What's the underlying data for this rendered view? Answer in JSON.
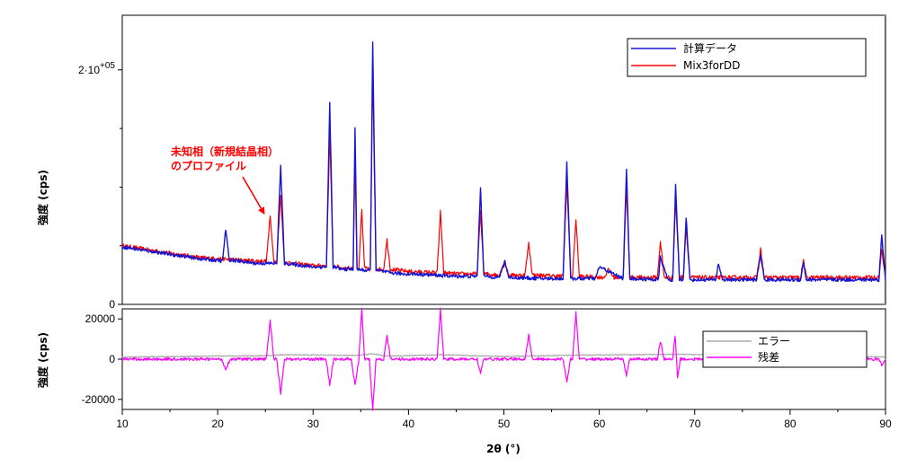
{
  "chart_data": [
    {
      "type": "line",
      "panel": "top",
      "ylabel": "強度 (cps)",
      "ylim": [
        0,
        245000
      ],
      "y_ticks": [
        {
          "value": 0,
          "label": "0"
        },
        {
          "value": 200000,
          "label": "2·10",
          "exp": "+05"
        }
      ],
      "legend": {
        "position": "top-right"
      },
      "series": [
        {
          "name": "計算データ",
          "color": "#1414d2",
          "x": [
            10,
            14,
            18,
            20.5,
            20.85,
            21.2,
            24,
            26.2,
            26.6,
            27.0,
            30,
            31.4,
            31.75,
            32.1,
            33,
            34.2,
            34.4,
            34.6,
            35.5,
            36.0,
            36.25,
            36.6,
            38,
            39.5,
            40.5,
            42.5,
            45,
            47.2,
            47.55,
            47.9,
            49.5,
            50.1,
            50.5,
            54,
            56.2,
            56.6,
            57.0,
            58.5,
            59.6,
            60.0,
            62.5,
            62.85,
            63.2,
            66.2,
            66.4,
            67.2,
            67.7,
            68.0,
            68.4,
            68.8,
            69.1,
            69.5,
            72.2,
            72.5,
            72.9,
            76.5,
            76.9,
            77.3,
            81.1,
            81.4,
            81.7,
            85,
            89.3,
            89.6,
            90
          ],
          "y": [
            49000,
            44000,
            39000,
            37000,
            64000,
            38000,
            35000,
            35000,
            118000,
            35000,
            32000,
            32000,
            172000,
            32000,
            30000,
            30000,
            151000,
            30000,
            29000,
            29000,
            223000,
            29000,
            27000,
            26000,
            26000,
            25000,
            24000,
            24000,
            100000,
            24000,
            23000,
            37000,
            23000,
            22000,
            22000,
            121000,
            22000,
            22000,
            22000,
            32000,
            22000,
            115000,
            22000,
            21000,
            40000,
            21000,
            21000,
            101000,
            21000,
            21000,
            75000,
            21000,
            21000,
            35000,
            21000,
            21000,
            43000,
            21000,
            21000,
            36000,
            21000,
            21000,
            21000,
            58000,
            21000
          ]
        },
        {
          "name": "Mix3forDD",
          "color": "#ff0000",
          "x": [
            10,
            14,
            18,
            24,
            25.1,
            25.5,
            25.9,
            26.2,
            26.6,
            27.0,
            30,
            31.4,
            31.75,
            32.1,
            33,
            34.2,
            34.4,
            34.6,
            34.8,
            35.1,
            35.4,
            35.7,
            36.0,
            36.25,
            36.6,
            37.4,
            37.75,
            38.1,
            40,
            43.0,
            43.35,
            43.7,
            45,
            47.2,
            47.55,
            47.9,
            49.5,
            50.1,
            50.5,
            52.2,
            52.6,
            53.0,
            56.2,
            56.6,
            57.0,
            57.2,
            57.55,
            57.9,
            60.5,
            61.0,
            61.5,
            62.5,
            62.85,
            63.2,
            66.1,
            66.4,
            66.8,
            67.7,
            68.0,
            68.4,
            68.8,
            69.1,
            69.5,
            76.5,
            76.9,
            77.3,
            81.1,
            81.4,
            81.7,
            89.3,
            89.6,
            90
          ],
          "y": [
            50000,
            45000,
            40000,
            37000,
            37000,
            75000,
            37000,
            36000,
            94000,
            36000,
            33000,
            33000,
            146000,
            33000,
            31000,
            31000,
            124000,
            31000,
            31000,
            80000,
            31000,
            30000,
            30000,
            200000,
            30000,
            30000,
            55000,
            30000,
            28000,
            27000,
            79000,
            27000,
            26000,
            26000,
            80000,
            26000,
            25000,
            35000,
            25000,
            25000,
            52000,
            25000,
            24000,
            104000,
            24000,
            24000,
            73000,
            24000,
            23000,
            30000,
            23000,
            23000,
            100000,
            23000,
            23000,
            54000,
            23000,
            23000,
            90000,
            23000,
            23000,
            66000,
            23000,
            23000,
            47000,
            23000,
            23000,
            38000,
            23000,
            23000,
            46000,
            23000
          ]
        }
      ],
      "annotation": {
        "lines": [
          "未知相（新規結晶相）",
          "のプロファイル"
        ],
        "x": 25.5,
        "y": 75000
      }
    },
    {
      "type": "line",
      "panel": "bottom",
      "xlabel": "2θ (°)",
      "ylabel": "強度 (cps)",
      "xlim": [
        10,
        90
      ],
      "ylim": [
        -25000,
        25000
      ],
      "x_ticks": [
        10,
        20,
        30,
        40,
        50,
        60,
        70,
        80,
        90
      ],
      "y_ticks": [
        20000,
        0,
        -20000
      ],
      "legend": {
        "position": "right"
      },
      "series": [
        {
          "name": "エラー",
          "color": "#a8a8a8",
          "x": [
            10,
            25.5,
            26.6,
            31.75,
            34.4,
            35.1,
            36.25,
            37.75,
            43.35,
            50,
            57.55,
            68.0,
            90
          ],
          "y": [
            1000,
            1800,
            2200,
            2000,
            1800,
            2200,
            2600,
            1500,
            2200,
            1300,
            2000,
            2400,
            1100
          ]
        },
        {
          "name": "残差",
          "color": "#ff00ff",
          "x": [
            10,
            20.4,
            20.85,
            21.3,
            25.1,
            25.5,
            25.9,
            26.2,
            26.6,
            27.0,
            31.35,
            31.75,
            32.15,
            34.0,
            34.4,
            34.8,
            35.1,
            35.4,
            35.9,
            36.25,
            36.6,
            37.4,
            37.75,
            38.1,
            43.0,
            43.35,
            43.7,
            47.2,
            47.55,
            47.9,
            52.2,
            52.6,
            53.0,
            56.2,
            56.6,
            57.0,
            57.2,
            57.55,
            57.9,
            62.5,
            62.85,
            63.2,
            66.1,
            66.4,
            66.8,
            67.7,
            67.95,
            68.2,
            68.5,
            76.5,
            76.9,
            77.3,
            81.1,
            81.4,
            81.7,
            89.3,
            89.6,
            90
          ],
          "y": [
            0,
            0,
            -5000,
            0,
            0,
            19000,
            0,
            0,
            -17000,
            0,
            0,
            -13000,
            0,
            0,
            -13000,
            0,
            25000,
            0,
            0,
            -25000,
            0,
            0,
            12000,
            0,
            0,
            25000,
            0,
            0,
            -7000,
            0,
            0,
            12000,
            0,
            0,
            -11000,
            0,
            0,
            23000,
            0,
            0,
            -8000,
            0,
            0,
            9000,
            0,
            0,
            12000,
            -9000,
            0,
            0,
            4000,
            0,
            0,
            3000,
            0,
            0,
            -3000,
            0
          ]
        }
      ]
    }
  ]
}
